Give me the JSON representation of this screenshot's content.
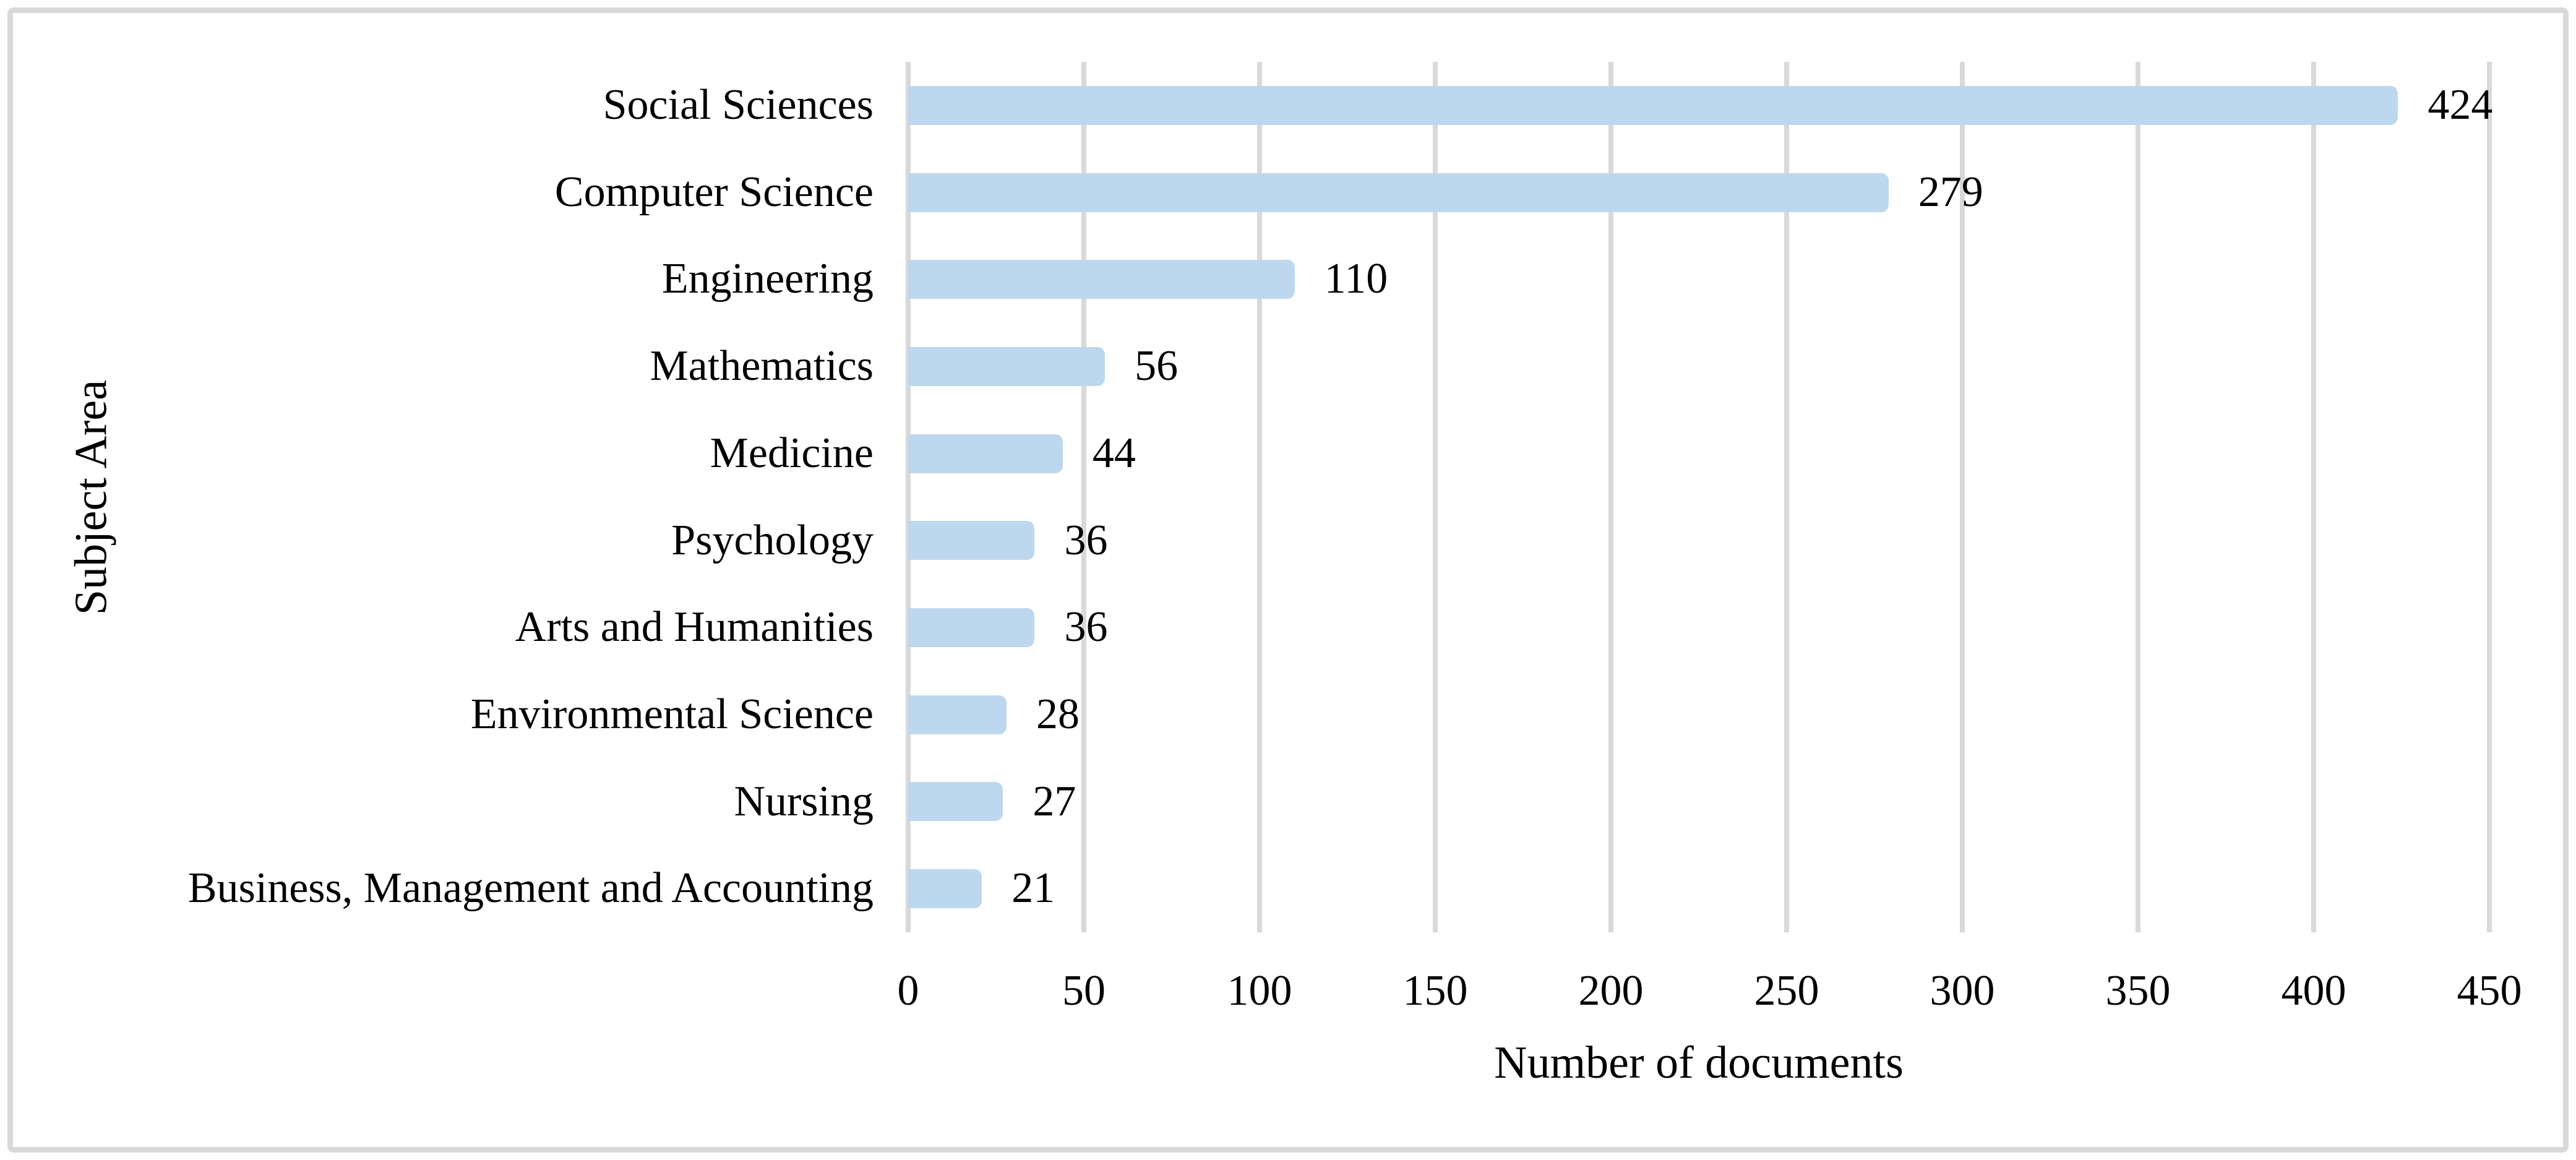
{
  "figure": {
    "background_color": "#FFFFFF",
    "border_color": "#D9D9D9"
  },
  "chart_data": {
    "type": "bar",
    "orientation": "horizontal",
    "title": "",
    "categories": [
      "Social Sciences",
      "Computer Science",
      "Engineering",
      "Mathematics",
      "Medicine",
      "Psychology",
      "Arts and Humanities",
      "Environmental Science",
      "Nursing",
      "Business, Management and Accounting"
    ],
    "values": [
      424,
      279,
      110,
      56,
      44,
      36,
      36,
      28,
      27,
      21
    ],
    "value_labels_shown": true,
    "xlabel": "Number of documents",
    "ylabel": "Subject Area",
    "xlim": [
      0,
      450
    ],
    "xticks": [
      0,
      50,
      100,
      150,
      200,
      250,
      300,
      350,
      400,
      450
    ],
    "grid": "vertical",
    "legend": "none",
    "bar_color": "#BDD7EE",
    "gridline_color": "#D9D9D9",
    "text_color": "#000000"
  }
}
